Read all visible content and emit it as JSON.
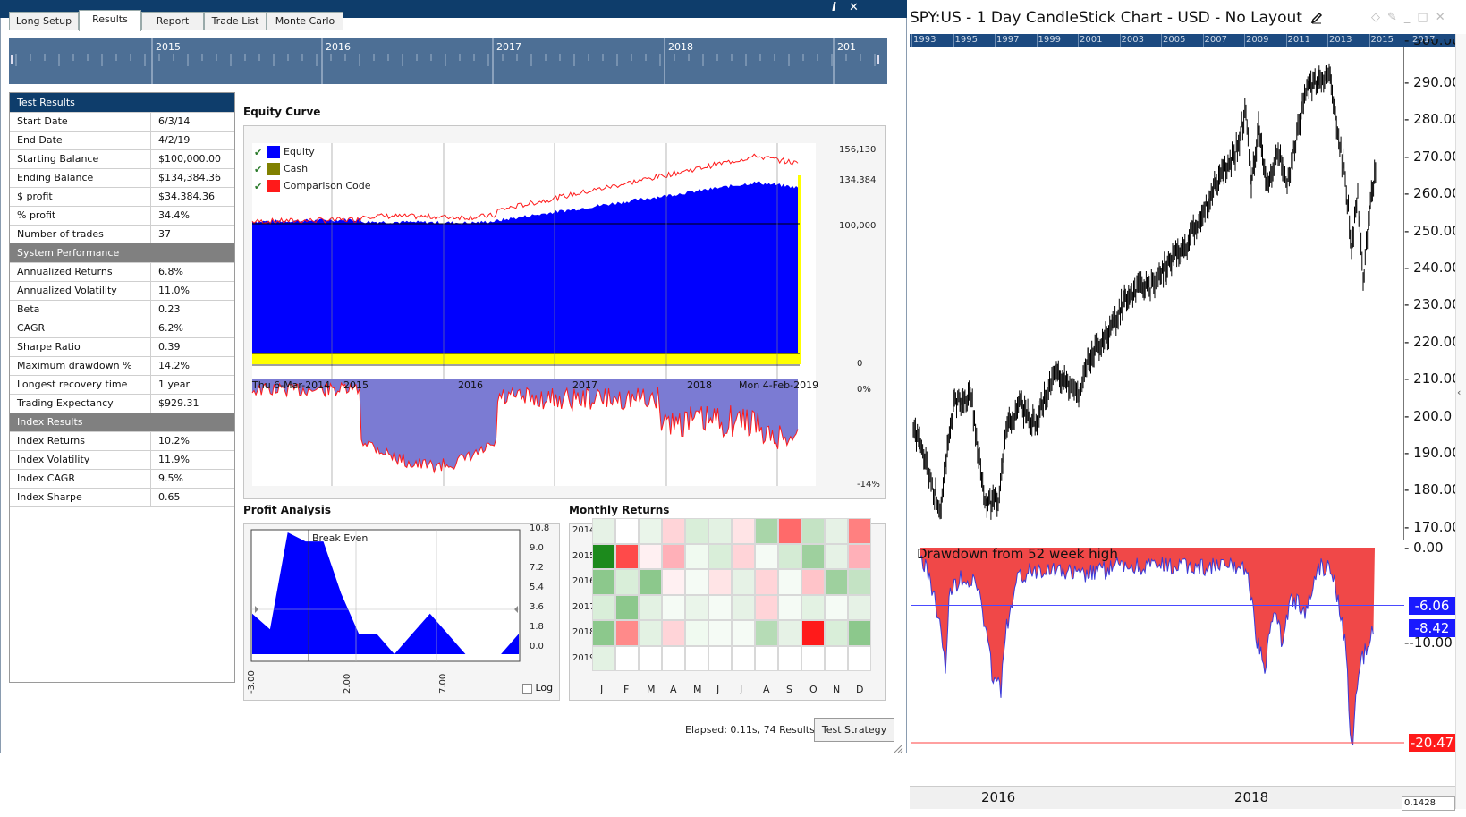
{
  "window": {
    "info_icon": "i",
    "close_icon": "✕"
  },
  "tabs": [
    {
      "label": "Long Setup",
      "active": false
    },
    {
      "label": "Results",
      "active": true
    },
    {
      "label": "Report",
      "active": false
    },
    {
      "label": "Trade List",
      "active": false
    },
    {
      "label": "Monte Carlo",
      "active": false
    }
  ],
  "timeline": {
    "years": [
      "2015",
      "2016",
      "2017",
      "2018",
      "201"
    ]
  },
  "results": {
    "rows": [
      {
        "k": "Test Results",
        "v": "",
        "type": "hdr"
      },
      {
        "k": "Start Date",
        "v": "6/3/14"
      },
      {
        "k": "End Date",
        "v": "4/2/19"
      },
      {
        "k": "Starting Balance",
        "v": "$100,000.00"
      },
      {
        "k": "Ending Balance",
        "v": "$134,384.36"
      },
      {
        "k": "$ profit",
        "v": "$34,384.36"
      },
      {
        "k": "% profit",
        "v": "34.4%"
      },
      {
        "k": "Number of trades",
        "v": "37"
      },
      {
        "k": "System Performance",
        "v": "",
        "type": "sub"
      },
      {
        "k": "Annualized Returns",
        "v": "6.8%"
      },
      {
        "k": "Annualized Volatility",
        "v": "11.0%"
      },
      {
        "k": "Beta",
        "v": "0.23"
      },
      {
        "k": "CAGR",
        "v": "6.2%"
      },
      {
        "k": "Sharpe Ratio",
        "v": "0.39"
      },
      {
        "k": "Maximum drawdown %",
        "v": "14.2%"
      },
      {
        "k": "Longest recovery time",
        "v": "1 year"
      },
      {
        "k": "Trading Expectancy",
        "v": "$929.31"
      },
      {
        "k": "Index Results",
        "v": "",
        "type": "sub"
      },
      {
        "k": "Index Returns",
        "v": "10.2%"
      },
      {
        "k": "Index Volatility",
        "v": "11.9%"
      },
      {
        "k": "Index CAGR",
        "v": "9.5%"
      },
      {
        "k": "Index Sharpe",
        "v": "0.65"
      }
    ]
  },
  "equity": {
    "title": "Equity Curve",
    "legend": [
      {
        "label": "Equity",
        "color": "#0000ff"
      },
      {
        "label": "Cash",
        "color": "#808000"
      },
      {
        "label": "Comparison Code",
        "color": "#ff1a1a"
      }
    ],
    "right_labels": [
      "156,130",
      "134,384",
      "100,000",
      "0",
      "0%",
      "-14%"
    ],
    "start_label": "Thu 6-Mar-2014",
    "end_label": "Mon 4-Feb-2019",
    "year_labels": [
      "2015",
      "2016",
      "2017",
      "2018"
    ]
  },
  "profit": {
    "title": "Profit Analysis",
    "break_even": "Break Even",
    "y_ticks": [
      "10.8",
      "9.0",
      "7.2",
      "5.4",
      "3.6",
      "1.8",
      "0.0"
    ],
    "x_ticks": [
      "-3.00",
      "2.00",
      "7.00"
    ],
    "log_label": "Log",
    "values": [
      3.6,
      2.2,
      10.8,
      10.0,
      10.0,
      5.4,
      1.8,
      1.8,
      0.0,
      1.8,
      3.6,
      1.8,
      0.0,
      0.0,
      0.0,
      1.8
    ]
  },
  "monthly": {
    "title": "Monthly Returns",
    "years": [
      "2014",
      "2015",
      "2016",
      "2017",
      "2018",
      "2019"
    ],
    "months": [
      "J",
      "F",
      "M",
      "A",
      "M",
      "J",
      "J",
      "A",
      "S",
      "O",
      "N",
      "D"
    ],
    "colors": [
      [
        "#e6f2e6",
        "#ffffff",
        "#eaf5ea",
        "#ffd4d8",
        "#d9eed9",
        "#e3f2e3",
        "#ffe4e6",
        "#a9d6a9",
        "#ff6a6a",
        "#c4e3c4",
        "#e6f2e6",
        "#ff8080"
      ],
      [
        "#1c8a1c",
        "#ff4a4a",
        "#fff0f2",
        "#ffb0b8",
        "#f0faf0",
        "#d9eed9",
        "#ffd4d8",
        "#f5fbf5",
        "#d4ebd4",
        "#9ed09e",
        "#e6f2e6",
        "#ffb0b8"
      ],
      [
        "#8cc88c",
        "#d9eed9",
        "#8cc88c",
        "#fff0f2",
        "#f5fbf5",
        "#ffe4e6",
        "#e6f2e6",
        "#ffd4d8",
        "#f5fbf5",
        "#ffc4c9",
        "#9ed09e",
        "#c4e3c4"
      ],
      [
        "#d9eed9",
        "#8cc88c",
        "#e3f2e3",
        "#f5fbf5",
        "#eaf5ea",
        "#f5fbf5",
        "#e6f2e6",
        "#ffd4d8",
        "#f5fbf5",
        "#e3f2e3",
        "#f5fbf5",
        "#e6f2e6"
      ],
      [
        "#8cc88c",
        "#ff8a8a",
        "#e3f2e3",
        "#ffd4d8",
        "#f0faf0",
        "#f5fbf5",
        "#f5fbf5",
        "#b6dcb6",
        "#e6f2e6",
        "#ff1a1a",
        "#d9eed9",
        "#8cc88c"
      ],
      [
        "#e3f2e3",
        "#ffffff",
        "#ffffff",
        "#ffffff",
        "#ffffff",
        "#ffffff",
        "#ffffff",
        "#ffffff",
        "#ffffff",
        "#ffffff",
        "#ffffff",
        "#ffffff"
      ]
    ]
  },
  "footer": {
    "elapsed": "Elapsed: 0.11s, 74 Results",
    "test_button": "Test Strategy"
  },
  "right": {
    "title": "SPY:US - 1 Day CandleStick Chart - USD - No Layout",
    "top_years": [
      "1993",
      "1995",
      "1997",
      "1999",
      "2001",
      "2003",
      "2005",
      "2007",
      "2009",
      "2011",
      "2013",
      "2015",
      "2017"
    ],
    "price_ticks": [
      "290.00",
      "280.00",
      "270.00",
      "260.00",
      "250.00",
      "240.00",
      "230.00",
      "220.00",
      "210.00",
      "200.0",
      "190.00",
      "180.00",
      "170.00"
    ],
    "price_top_partial": "300.00",
    "dd_title": "Drawdown from 52 week high",
    "dd_ticks": [
      "0.00",
      "-10.00"
    ],
    "dd_tags": [
      {
        "text": "-6.06",
        "color": "#1a1aff"
      },
      {
        "text": "-8.42",
        "color": "#1a1aff"
      },
      {
        "text": "-20.47",
        "color": "#ff1a1a"
      }
    ],
    "bottom_years": [
      "2016",
      "2018"
    ],
    "zoom": "0.1428"
  },
  "chart_data": [
    {
      "type": "area",
      "title": "Equity Curve",
      "x": [
        "Thu 6-Mar-2014",
        "2015",
        "2016",
        "2017",
        "2018",
        "Mon 4-Feb-2019"
      ],
      "series": [
        {
          "name": "Equity",
          "values": [
            100000,
            101000,
            100500,
            108000,
            128000,
            134384
          ]
        },
        {
          "name": "Comparison Code",
          "values": [
            100000,
            107000,
            102000,
            121000,
            152000,
            156130
          ]
        }
      ]
    }
  ]
}
